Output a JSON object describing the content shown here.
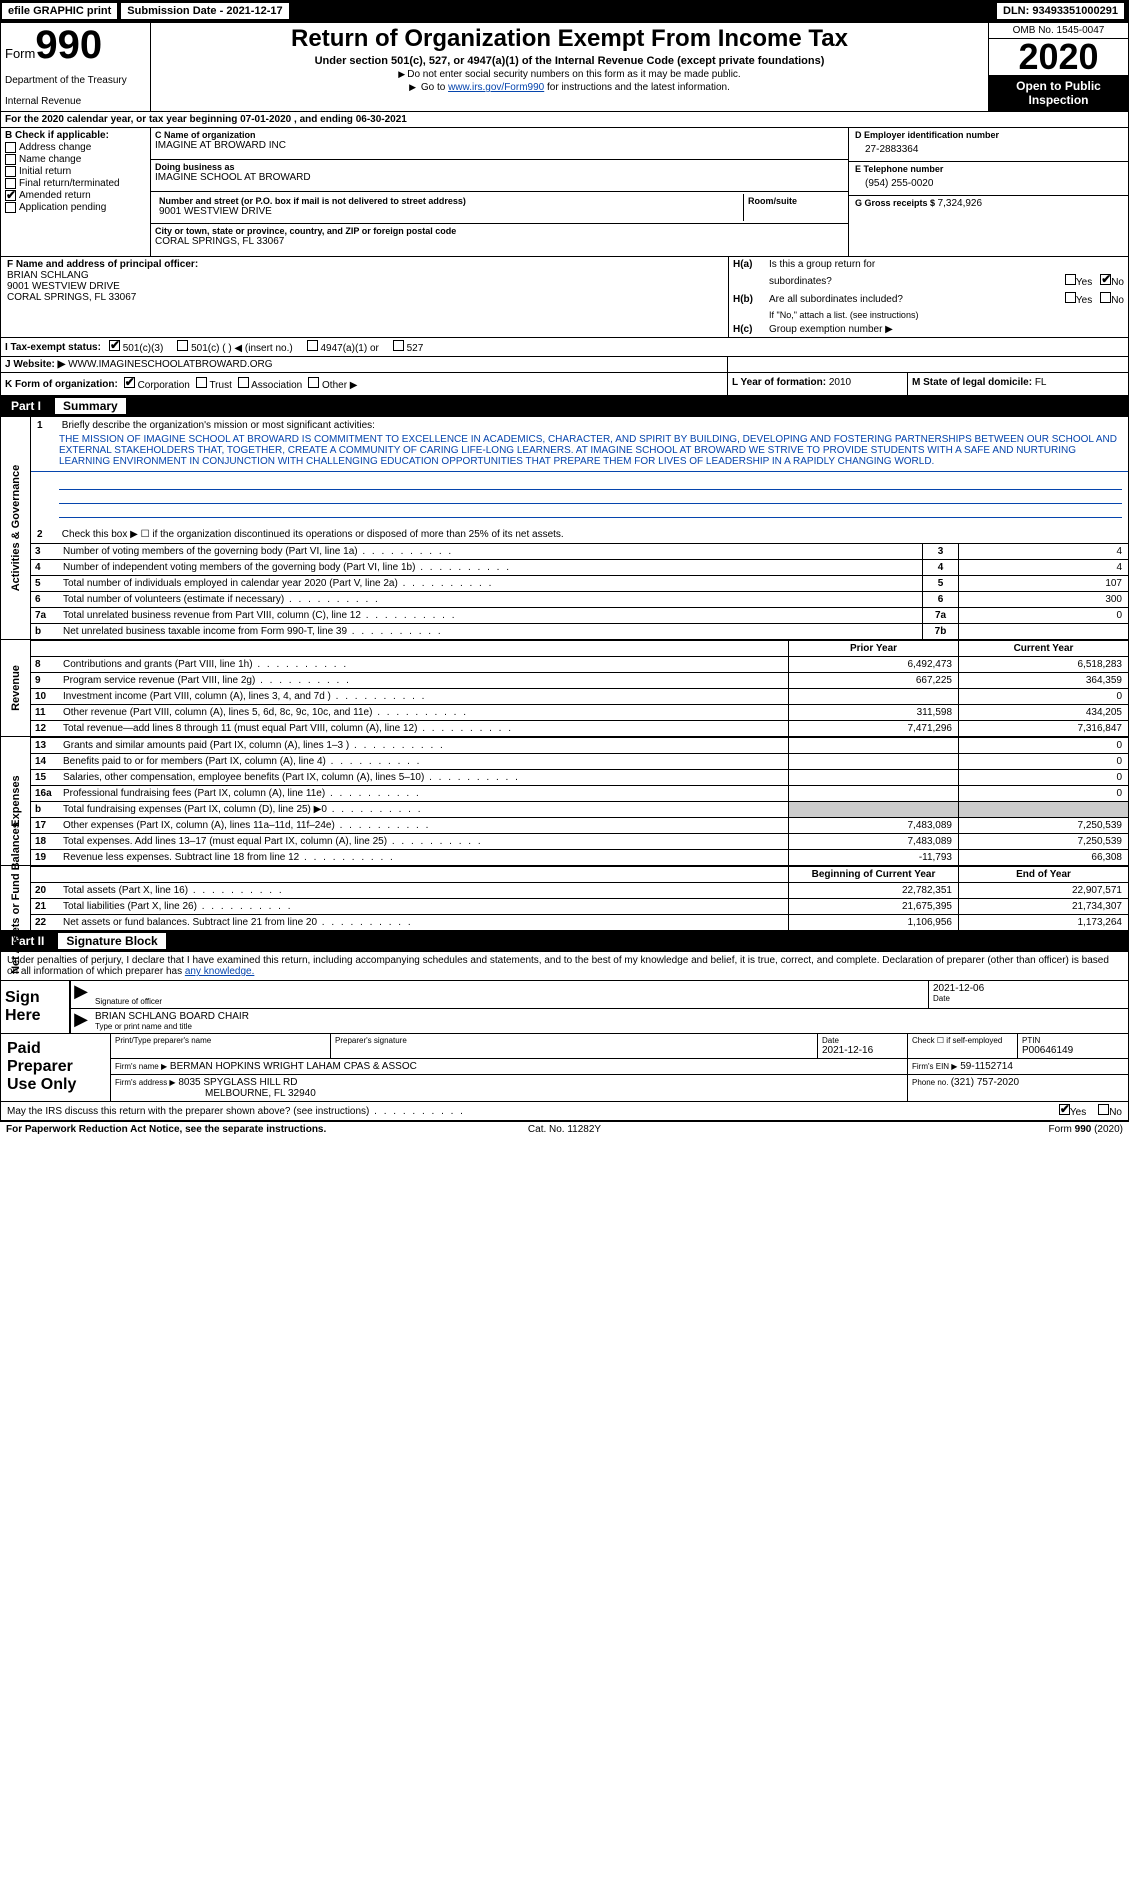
{
  "topbar": {
    "efile": "efile GRAPHIC print",
    "submission_label": "Submission Date - ",
    "submission_date": "2021-12-17",
    "dln_label": "DLN: ",
    "dln": "93493351000291"
  },
  "header": {
    "form_label": "Form",
    "form_number": "990",
    "dept1": "Department of the Treasury",
    "dept2": "Internal Revenue",
    "title": "Return of Organization Exempt From Income Tax",
    "subtitle": "Under section 501(c), 527, or 4947(a)(1) of the Internal Revenue Code (except private foundations)",
    "line1": "Do not enter social security numbers on this form as it may be made public.",
    "line2_pre": "Go to ",
    "line2_link": "www.irs.gov/Form990",
    "line2_post": " for instructions and the latest information.",
    "omb": "OMB No. 1545-0047",
    "year": "2020",
    "open": "Open to Public Inspection"
  },
  "row_a": {
    "pre": "A",
    "text": "For the 2020 calendar year, or tax year beginning ",
    "begin": "07-01-2020",
    "mid": " , and ending ",
    "end": "06-30-2021"
  },
  "section_b": {
    "label": "B Check if applicable:",
    "opts": [
      {
        "label": "Address change",
        "checked": false
      },
      {
        "label": "Name change",
        "checked": false
      },
      {
        "label": "Initial return",
        "checked": false
      },
      {
        "label": "Final return/terminated",
        "checked": false
      },
      {
        "label": "Amended return",
        "checked": true
      },
      {
        "label": "Application pending",
        "checked": false
      }
    ]
  },
  "section_c": {
    "name_lbl": "C Name of organization",
    "name": "IMAGINE AT BROWARD INC",
    "dba_lbl": "Doing business as",
    "dba": "IMAGINE SCHOOL AT BROWARD",
    "street_lbl": "Number and street (or P.O. box if mail is not delivered to street address)",
    "street": "9001 WESTVIEW DRIVE",
    "room_lbl": "Room/suite",
    "city_lbl": "City or town, state or province, country, and ZIP or foreign postal code",
    "city": "CORAL SPRINGS, FL  33067"
  },
  "section_d": {
    "ein_lbl": "D Employer identification number",
    "ein": "27-2883364",
    "tel_lbl": "E Telephone number",
    "tel": "(954) 255-0020",
    "gross_lbl": "G Gross receipts $ ",
    "gross": "7,324,926"
  },
  "section_f": {
    "lbl": "F  Name and address of principal officer:",
    "name": "BRIAN SCHLANG",
    "addr1": "9001 WESTVIEW DRIVE",
    "addr2": "CORAL SPRINGS, FL  33067"
  },
  "section_h": {
    "ha_lbl": "H(a)",
    "ha_q1": "Is this a group return for",
    "ha_q2": "subordinates?",
    "ha_yes": "Yes",
    "ha_no": "No",
    "ha_checked": "No",
    "hb_lbl": "H(b)",
    "hb_q": "Are all subordinates included?",
    "hb_note": "If \"No,\" attach a list. (see instructions)",
    "hc_lbl": "H(c)",
    "hc_q": "Group exemption number ▶"
  },
  "section_i": {
    "lbl": "I   Tax-exempt status:",
    "opts": [
      "501(c)(3)",
      "501(c) (  ) ◀ (insert no.)",
      "4947(a)(1) or",
      "527"
    ],
    "checked_idx": 0
  },
  "section_j": {
    "lbl": "J   Website: ▶",
    "val": "WWW.IMAGINESCHOOLATBROWARD.ORG"
  },
  "section_k": {
    "lbl": "K Form of organization:",
    "opts": [
      "Corporation",
      "Trust",
      "Association",
      "Other ▶"
    ],
    "checked_idx": 0
  },
  "section_l": {
    "lbl": "L Year of formation: ",
    "val": "2010"
  },
  "section_m": {
    "lbl": "M State of legal domicile: ",
    "val": "FL"
  },
  "part1": {
    "hdr_num": "Part I",
    "hdr_title": "Summary",
    "tabs": [
      "Activities & Governance",
      "Revenue",
      "Expenses",
      "Net Assets or Fund Balances"
    ],
    "line1_lbl": "1",
    "line1_text": "Briefly describe the organization's mission or most significant activities:",
    "mission": "THE MISSION OF IMAGINE SCHOOL AT BROWARD IS COMMITMENT TO EXCELLENCE IN ACADEMICS, CHARACTER, AND SPIRIT BY BUILDING, DEVELOPING AND FOSTERING PARTNERSHIPS BETWEEN OUR SCHOOL AND EXTERNAL STAKEHOLDERS THAT, TOGETHER, CREATE A COMMUNITY OF CARING LIFE-LONG LEARNERS. AT IMAGINE SCHOOL AT BROWARD WE STRIVE TO PROVIDE STUDENTS WITH A SAFE AND NURTURING LEARNING ENVIRONMENT IN CONJUNCTION WITH CHALLENGING EDUCATION OPPORTUNITIES THAT PREPARE THEM FOR LIVES OF LEADERSHIP IN A RAPIDLY CHANGING WORLD.",
    "line2": "Check this box ▶ ☐  if the organization discontinued its operations or disposed of more than 25% of its net assets.",
    "gov_rows": [
      {
        "n": "3",
        "d": "Number of voting members of the governing body (Part VI, line 1a)",
        "bn": "3",
        "bv": "4"
      },
      {
        "n": "4",
        "d": "Number of independent voting members of the governing body (Part VI, line 1b)",
        "bn": "4",
        "bv": "4"
      },
      {
        "n": "5",
        "d": "Total number of individuals employed in calendar year 2020 (Part V, line 2a)",
        "bn": "5",
        "bv": "107"
      },
      {
        "n": "6",
        "d": "Total number of volunteers (estimate if necessary)",
        "bn": "6",
        "bv": "300"
      },
      {
        "n": "7a",
        "d": "Total unrelated business revenue from Part VIII, column (C), line 12",
        "bn": "7a",
        "bv": "0"
      },
      {
        "n": "b",
        "d": "Net unrelated business taxable income from Form 990-T, line 39",
        "bn": "7b",
        "bv": ""
      }
    ],
    "hdr_prior": "Prior Year",
    "hdr_current": "Current Year",
    "rev_rows": [
      {
        "n": "8",
        "d": "Contributions and grants (Part VIII, line 1h)",
        "c1": "6,492,473",
        "c2": "6,518,283"
      },
      {
        "n": "9",
        "d": "Program service revenue (Part VIII, line 2g)",
        "c1": "667,225",
        "c2": "364,359"
      },
      {
        "n": "10",
        "d": "Investment income (Part VIII, column (A), lines 3, 4, and 7d )",
        "c1": "",
        "c2": "0"
      },
      {
        "n": "11",
        "d": "Other revenue (Part VIII, column (A), lines 5, 6d, 8c, 9c, 10c, and 11e)",
        "c1": "311,598",
        "c2": "434,205"
      },
      {
        "n": "12",
        "d": "Total revenue—add lines 8 through 11 (must equal Part VIII, column (A), line 12)",
        "c1": "7,471,296",
        "c2": "7,316,847"
      }
    ],
    "exp_rows": [
      {
        "n": "13",
        "d": "Grants and similar amounts paid (Part IX, column (A), lines 1–3 )",
        "c1": "",
        "c2": "0"
      },
      {
        "n": "14",
        "d": "Benefits paid to or for members (Part IX, column (A), line 4)",
        "c1": "",
        "c2": "0"
      },
      {
        "n": "15",
        "d": "Salaries, other compensation, employee benefits (Part IX, column (A), lines 5–10)",
        "c1": "",
        "c2": "0"
      },
      {
        "n": "16a",
        "d": "Professional fundraising fees (Part IX, column (A), line 11e)",
        "c1": "",
        "c2": "0"
      },
      {
        "n": "b",
        "d": "Total fundraising expenses (Part IX, column (D), line 25) ▶0",
        "c1": "SHADE",
        "c2": "SHADE"
      },
      {
        "n": "17",
        "d": "Other expenses (Part IX, column (A), lines 11a–11d, 11f–24e)",
        "c1": "7,483,089",
        "c2": "7,250,539"
      },
      {
        "n": "18",
        "d": "Total expenses. Add lines 13–17 (must equal Part IX, column (A), line 25)",
        "c1": "7,483,089",
        "c2": "7,250,539"
      },
      {
        "n": "19",
        "d": "Revenue less expenses. Subtract line 18 from line 12",
        "c1": "-11,793",
        "c2": "66,308"
      }
    ],
    "hdr_begin": "Beginning of Current Year",
    "hdr_end": "End of Year",
    "net_rows": [
      {
        "n": "20",
        "d": "Total assets (Part X, line 16)",
        "c1": "22,782,351",
        "c2": "22,907,571"
      },
      {
        "n": "21",
        "d": "Total liabilities (Part X, line 26)",
        "c1": "21,675,395",
        "c2": "21,734,307"
      },
      {
        "n": "22",
        "d": "Net assets or fund balances. Subtract line 21 from line 20",
        "c1": "1,106,956",
        "c2": "1,173,264"
      }
    ]
  },
  "part2": {
    "hdr_num": "Part II",
    "hdr_title": "Signature Block",
    "decl": "Under penalties of perjury, I declare that I have examined this return, including accompanying schedules and statements, and to the best of my knowledge and belief, it is true, correct, and complete. Declaration of preparer (other than officer) is based on all information of which preparer has ",
    "decl_link": "any knowledge.",
    "sign_here": "Sign Here",
    "sig_officer_lbl": "Signature of officer",
    "sig_date": "2021-12-06",
    "sig_date_lbl": "Date",
    "officer_name": "BRIAN SCHLANG  BOARD CHAIR",
    "officer_name_lbl": "Type or print name and title",
    "paid_lbl": "Paid Preparer Use Only",
    "prep_name_lbl": "Print/Type preparer's name",
    "prep_sig_lbl": "Preparer's signature",
    "prep_date_lbl": "Date",
    "prep_date": "2021-12-16",
    "prep_self_lbl": "Check ☐ if self-employed",
    "ptin_lbl": "PTIN",
    "ptin": "P00646149",
    "firm_name_lbl": "Firm's name      ▶",
    "firm_name": "BERMAN HOPKINS WRIGHT LAHAM CPAS & ASSOC",
    "firm_ein_lbl": "Firm's EIN ▶",
    "firm_ein": "59-1152714",
    "firm_addr_lbl": "Firm's address ▶",
    "firm_addr1": "8035 SPYGLASS HILL RD",
    "firm_addr2": "MELBOURNE, FL  32940",
    "firm_phone_lbl": "Phone no. ",
    "firm_phone": "(321) 757-2020",
    "discuss": "May the IRS discuss this return with the preparer shown above? (see instructions)",
    "discuss_yes": "Yes",
    "discuss_no": "No"
  },
  "footer": {
    "left": "For Paperwork Reduction Act Notice, see the separate instructions.",
    "mid": "Cat. No. 11282Y",
    "right_pre": "Form ",
    "right_form": "990",
    "right_post": " (2020)"
  },
  "colors": {
    "link": "#0645ad",
    "shade": "#cccccc"
  }
}
